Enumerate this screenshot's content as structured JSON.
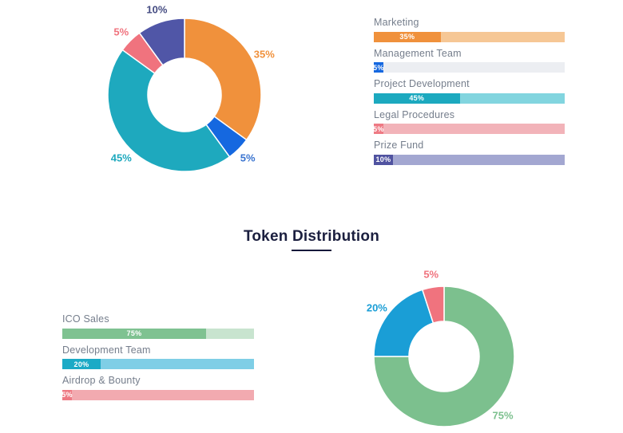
{
  "heading": {
    "title": "Token Distribution"
  },
  "chart_data": [
    {
      "type": "pie",
      "variant": "donut",
      "labels": [
        "Marketing",
        "Management Team",
        "Project Development",
        "Legal Procedures",
        "Prize Fund"
      ],
      "values": [
        35,
        5,
        45,
        5,
        10
      ],
      "display_values": [
        "35%",
        "5%",
        "45%",
        "5%",
        "10%"
      ],
      "colors": [
        "#f0913c",
        "#1568e0",
        "#1ea9be",
        "#f0737e",
        "#5056a7"
      ],
      "label_colors": [
        "#f0913c",
        "#3a74d0",
        "#1ea9be",
        "#f0737e",
        "#454c82"
      ],
      "start_angle_deg": 0,
      "direction": "clockwise",
      "legend_position": "right-bars"
    },
    {
      "type": "pie",
      "variant": "donut",
      "title": "Token Distribution",
      "labels": [
        "ICO Sales",
        "Development Team",
        "Airdrop & Bounty"
      ],
      "values": [
        75,
        20,
        5
      ],
      "display_values": [
        "75%",
        "20%",
        "5%"
      ],
      "colors": [
        "#7cc08e",
        "#1a9ed6",
        "#f0737e"
      ],
      "label_colors": [
        "#7cc08e",
        "#1a9ed6",
        "#f0737e"
      ],
      "start_angle_deg": 0,
      "direction": "clockwise",
      "legend_position": "left-bars"
    }
  ],
  "top_bars": [
    {
      "label": "Marketing",
      "value": 35,
      "display": "35%",
      "fill_color": "#f0913c",
      "track_color": "#f6c795"
    },
    {
      "label": "Management Team",
      "value": 5,
      "display": "5%",
      "fill_color": "#1568e0",
      "track_color": "#eceef2"
    },
    {
      "label": "Project Development",
      "value": 45,
      "display": "45%",
      "fill_color": "#1ca9bf",
      "track_color": "#82d5df"
    },
    {
      "label": "Legal Procedures",
      "value": 5,
      "display": "5%",
      "fill_color": "#ee7a84",
      "track_color": "#f2b3b9"
    },
    {
      "label": "Prize Fund",
      "value": 10,
      "display": "10%",
      "fill_color": "#5053a0",
      "track_color": "#a3a7d1"
    }
  ],
  "bottom_bars": [
    {
      "label": "ICO Sales",
      "value": 75,
      "display": "75%",
      "fill_color": "#7fc291",
      "track_color": "#c8e4cf"
    },
    {
      "label": "Development Team",
      "value": 20,
      "display": "20%",
      "fill_color": "#1baac6",
      "track_color": "#7fcee6"
    },
    {
      "label": "Airdrop & Bounty",
      "value": 5,
      "display": "5%",
      "fill_color": "#ee7a84",
      "track_color": "#f2aab0"
    }
  ]
}
